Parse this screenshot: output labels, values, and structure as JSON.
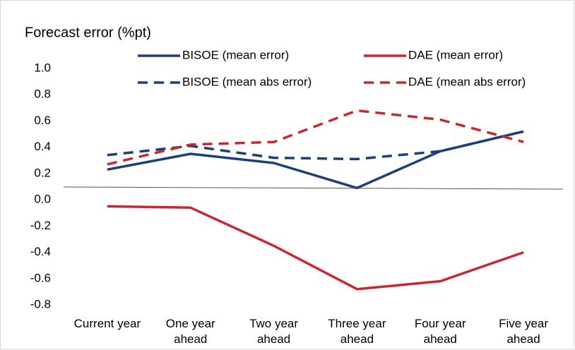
{
  "chart_data": {
    "type": "line",
    "title": "Forecast error (%pt)",
    "categories": [
      "Current year",
      "One year ahead",
      "Two year ahead",
      "Three year ahead",
      "Four year ahead",
      "Five year ahead"
    ],
    "series": [
      {
        "name": "BISOE (mean error)",
        "color": "#1b3f78",
        "style": "solid",
        "values": [
          0.23,
          0.35,
          0.28,
          0.09,
          0.37,
          0.52
        ]
      },
      {
        "name": "DAE (mean error)",
        "color": "#c8282f",
        "style": "solid",
        "values": [
          -0.05,
          -0.06,
          -0.35,
          -0.68,
          -0.62,
          -0.4
        ]
      },
      {
        "name": "BISOE (mean abs error)",
        "color": "#1b3f78",
        "style": "dashed",
        "values": [
          0.34,
          0.41,
          0.32,
          0.31,
          0.37,
          0.52
        ]
      },
      {
        "name": "DAE (mean abs error)",
        "color": "#c8282f",
        "style": "dashed",
        "values": [
          0.27,
          0.42,
          0.44,
          0.68,
          0.61,
          0.44
        ]
      }
    ],
    "ylim": [
      -0.8,
      1.0
    ],
    "yticks": [
      -0.8,
      -0.6,
      -0.4,
      -0.2,
      {
        "value": 0,
        "label": "0.0"
      },
      0.2,
      0.4,
      0.6,
      0.8,
      {
        "value": 1,
        "label": "1.0"
      }
    ],
    "grid": false,
    "legend": "top"
  }
}
